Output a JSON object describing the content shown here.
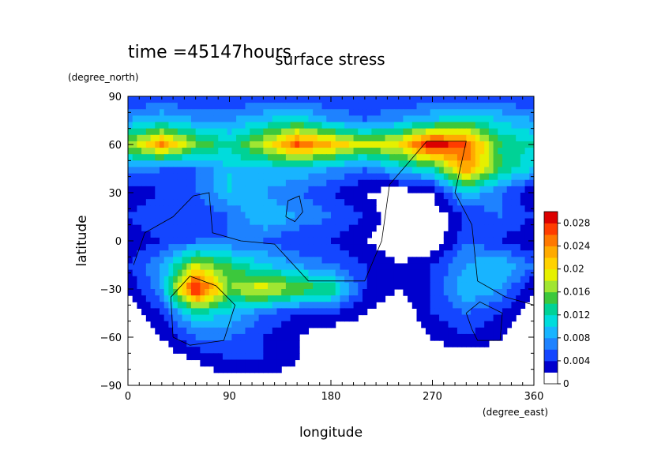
{
  "chart_data": {
    "type": "heatmap",
    "time_label": "time =45147hours",
    "title": "surface stress",
    "xlabel": "longitude",
    "ylabel": "latitude",
    "x_unit": "(degree_east)",
    "y_unit": "(degree_north)",
    "xlim": [
      0,
      360
    ],
    "ylim": [
      -90,
      90
    ],
    "x_ticks": [
      0,
      90,
      180,
      270,
      360
    ],
    "y_ticks": [
      90,
      60,
      30,
      0,
      -30,
      -60,
      -90
    ],
    "x_tick_labels": [
      "0",
      "90",
      "180",
      "270",
      "360"
    ],
    "y_tick_labels": [
      "90",
      "60",
      "30",
      "0",
      "−30",
      "−60",
      "−90"
    ],
    "colorbar": {
      "levels": [
        0,
        0.002,
        0.004,
        0.006,
        0.008,
        0.01,
        0.012,
        0.014,
        0.016,
        0.018,
        0.02,
        0.022,
        0.024,
        0.026,
        0.028,
        0.03
      ],
      "tick_values": [
        0,
        0.004,
        0.008,
        0.012,
        0.016,
        0.02,
        0.024,
        0.028
      ],
      "tick_labels": [
        "0",
        "0.004",
        "0.008",
        "0.012",
        "0.016",
        "0.02",
        "0.024",
        "0.028"
      ],
      "colors": [
        "#ffffff",
        "#0000cd",
        "#1446ff",
        "#1e82ff",
        "#18b4ff",
        "#00dcdc",
        "#00d296",
        "#3cc83c",
        "#a0e632",
        "#e6f000",
        "#ffd200",
        "#ffaa00",
        "#ff7800",
        "#ff3c00",
        "#dc0000"
      ]
    },
    "field_grid": {
      "lon_start": 0,
      "lon_step": 30,
      "lat_start": 90,
      "lat_step": -15,
      "values": [
        [
          0.004,
          0.004,
          0.004,
          0.004,
          0.004,
          0.004,
          0.004,
          0.004,
          0.004,
          0.004,
          0.004,
          0.004,
          0.004
        ],
        [
          0.008,
          0.01,
          0.008,
          0.008,
          0.01,
          0.012,
          0.008,
          0.006,
          0.008,
          0.01,
          0.012,
          0.01,
          0.008
        ],
        [
          0.016,
          0.024,
          0.016,
          0.012,
          0.018,
          0.026,
          0.022,
          0.018,
          0.02,
          0.03,
          0.026,
          0.014,
          0.012
        ],
        [
          0.008,
          0.006,
          0.006,
          0.01,
          0.01,
          0.01,
          0.008,
          0.006,
          0.01,
          0.012,
          0.024,
          0.014,
          0.01
        ],
        [
          0.002,
          0.004,
          0.006,
          0.01,
          0.008,
          0.006,
          0.004,
          0.002,
          0.0,
          0.002,
          0.01,
          0.006,
          0.002
        ],
        [
          0.004,
          0.006,
          0.004,
          0.006,
          0.01,
          0.008,
          0.006,
          0.004,
          0.0,
          0.0,
          0.004,
          0.006,
          0.004
        ],
        [
          0.002,
          0.004,
          0.006,
          0.006,
          0.006,
          0.004,
          0.004,
          0.002,
          0.0,
          0.0,
          0.006,
          0.004,
          0.002
        ],
        [
          0.004,
          0.008,
          0.018,
          0.014,
          0.01,
          0.008,
          0.006,
          0.004,
          0.002,
          0.004,
          0.008,
          0.01,
          0.006
        ],
        [
          0.002,
          0.008,
          0.03,
          0.016,
          0.02,
          0.016,
          0.014,
          0.004,
          0.002,
          0.004,
          0.01,
          0.008,
          0.002
        ],
        [
          0.0,
          0.004,
          0.012,
          0.01,
          0.006,
          0.004,
          0.004,
          0.002,
          0.0,
          0.004,
          0.006,
          0.004,
          0.0
        ],
        [
          0.0,
          0.002,
          0.006,
          0.006,
          0.004,
          0.002,
          0.0,
          0.0,
          0.0,
          0.002,
          0.004,
          0.002,
          0.0
        ],
        [
          0.0,
          0.0,
          0.002,
          0.004,
          0.004,
          0.002,
          0.002,
          0.0,
          0.0,
          0.0,
          0.0,
          0.0,
          0.0
        ],
        [
          0.0,
          0.0,
          0.0,
          0.0,
          0.0,
          0.0,
          0.0,
          0.0,
          0.0,
          0.0,
          0.0,
          0.0,
          0.0
        ]
      ]
    },
    "coastlines": [
      [
        [
          5,
          -15
        ],
        [
          15,
          5
        ],
        [
          40,
          15
        ],
        [
          58,
          28
        ],
        [
          72,
          30
        ],
        [
          75,
          5
        ],
        [
          100,
          0
        ],
        [
          130,
          -2
        ],
        [
          160,
          -25
        ],
        [
          210,
          -25
        ],
        [
          225,
          0
        ],
        [
          232,
          35
        ],
        [
          265,
          62
        ],
        [
          300,
          62
        ],
        [
          290,
          30
        ],
        [
          305,
          10
        ],
        [
          310,
          -25
        ],
        [
          335,
          -35
        ],
        [
          360,
          -40
        ]
      ],
      [
        [
          40,
          -60
        ],
        [
          38,
          -35
        ],
        [
          55,
          -22
        ],
        [
          78,
          -28
        ],
        [
          95,
          -40
        ],
        [
          85,
          -62
        ],
        [
          55,
          -65
        ],
        [
          40,
          -60
        ]
      ],
      [
        [
          140,
          15
        ],
        [
          142,
          25
        ],
        [
          152,
          28
        ],
        [
          155,
          18
        ],
        [
          148,
          12
        ],
        [
          140,
          15
        ]
      ],
      [
        [
          305,
          -55
        ],
        [
          300,
          -45
        ],
        [
          312,
          -38
        ],
        [
          332,
          -45
        ],
        [
          330,
          -62
        ],
        [
          310,
          -62
        ],
        [
          305,
          -55
        ]
      ]
    ]
  }
}
